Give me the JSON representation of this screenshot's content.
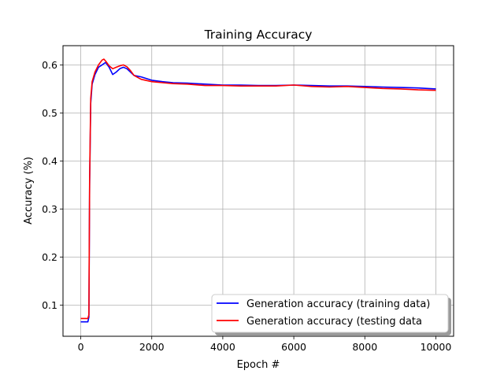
{
  "chart_data": {
    "type": "line",
    "title": "Training Accuracy",
    "xlabel": "Epoch #",
    "ylabel": "Accuracy (%)",
    "xlim": [
      -500,
      10500
    ],
    "ylim": [
      0.035,
      0.64
    ],
    "xticks": [
      0,
      2000,
      4000,
      6000,
      8000,
      10000
    ],
    "xtick_labels": [
      "0",
      "2000",
      "4000",
      "6000",
      "8000",
      "10000"
    ],
    "yticks": [
      0.1,
      0.2,
      0.3,
      0.4,
      0.5,
      0.6
    ],
    "ytick_labels": [
      "0.1",
      "0.2",
      "0.3",
      "0.4",
      "0.5",
      "0.6"
    ],
    "grid": true,
    "legend_position": "lower-right",
    "series": [
      {
        "name": "Generation accuracy (training data)",
        "color": "#0000ff",
        "x": [
          0,
          150,
          200,
          230,
          250,
          280,
          320,
          400,
          500,
          600,
          700,
          800,
          900,
          1000,
          1100,
          1200,
          1300,
          1400,
          1500,
          1700,
          2000,
          2300,
          2600,
          3000,
          3500,
          4000,
          4500,
          5000,
          5500,
          6000,
          6500,
          7000,
          7500,
          8000,
          8500,
          9000,
          9500,
          10000
        ],
        "y": [
          0.065,
          0.065,
          0.065,
          0.075,
          0.35,
          0.52,
          0.56,
          0.58,
          0.595,
          0.6,
          0.605,
          0.595,
          0.58,
          0.585,
          0.592,
          0.595,
          0.592,
          0.585,
          0.578,
          0.575,
          0.568,
          0.565,
          0.563,
          0.562,
          0.56,
          0.558,
          0.558,
          0.557,
          0.557,
          0.558,
          0.557,
          0.556,
          0.556,
          0.555,
          0.554,
          0.553,
          0.552,
          0.55
        ]
      },
      {
        "name": "Generation accuracy (testing data",
        "color": "#ff0000",
        "x": [
          0,
          150,
          200,
          230,
          250,
          280,
          320,
          400,
          500,
          600,
          650,
          700,
          800,
          900,
          1000,
          1100,
          1200,
          1300,
          1400,
          1500,
          1700,
          2000,
          2300,
          2600,
          3000,
          3500,
          4000,
          4500,
          5000,
          5500,
          6000,
          6500,
          7000,
          7500,
          8000,
          8500,
          9000,
          9500,
          10000
        ],
        "y": [
          0.072,
          0.072,
          0.072,
          0.08,
          0.36,
          0.53,
          0.565,
          0.585,
          0.6,
          0.61,
          0.612,
          0.608,
          0.598,
          0.592,
          0.595,
          0.598,
          0.6,
          0.596,
          0.588,
          0.578,
          0.57,
          0.565,
          0.563,
          0.561,
          0.56,
          0.557,
          0.557,
          0.556,
          0.556,
          0.556,
          0.558,
          0.555,
          0.554,
          0.555,
          0.553,
          0.551,
          0.55,
          0.548,
          0.547
        ]
      }
    ]
  }
}
